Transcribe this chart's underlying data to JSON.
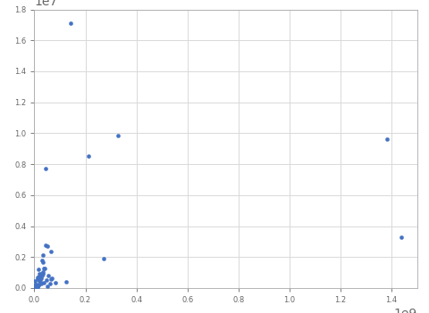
{
  "title": "",
  "xlabel": "",
  "ylabel": "",
  "marker_color": "#4472c4",
  "marker_size": 3,
  "marker_style": "o",
  "background_color": "#ffffff",
  "grid_color": "#d9d9d9",
  "x_data": [
    1381000000,
    1439000000,
    329000000,
    270000000,
    212000000,
    143000000,
    126000000,
    83000000,
    67000000,
    66000000,
    65000000,
    60000000,
    55000000,
    52000000,
    51000000,
    46000000,
    44000000,
    43000000,
    42000000,
    38000000,
    37000000,
    35000000,
    34000000,
    32000000,
    32000000,
    30000000,
    29000000,
    28000000,
    27000000,
    25000000,
    25000000,
    22000000,
    21000000,
    20000000,
    19000000,
    18000000,
    17000000,
    16000000,
    16000000,
    15000000,
    14000000,
    13000000,
    12000000,
    11000000,
    10000000,
    10000000,
    9000000,
    9000000,
    8000000,
    8000000,
    7000000,
    7000000,
    6000000,
    6000000,
    5000000,
    5000000,
    4000000,
    4000000,
    3000000,
    3000000,
    2000000,
    2000000,
    1000000,
    1000000,
    500000,
    500000,
    300000,
    100000,
    50000,
    20000
  ],
  "y_data": [
    9596960,
    3287263,
    9833517,
    1904569,
    8515767,
    17098242,
    377915,
    357114,
    643801,
    551500,
    2381741,
    301340,
    780580,
    2724900,
    99720,
    505370,
    7692024,
    2780400,
    1285216,
    312685,
    1246700,
    916445,
    1648195,
    2149690,
    1040000,
    1759540,
    803940,
    910000,
    329847,
    639321,
    274000,
    580000,
    448000,
    756626,
    756950,
    923768,
    238517,
    603550,
    143100,
    1220000,
    112622,
    582650,
    696000,
    30528,
    41285,
    56785,
    147181,
    17364,
    83871,
    65610,
    110861,
    199951,
    21041,
    27750,
    238533,
    93030,
    28748,
    70273,
    143998,
    475440,
    120000,
    5130,
    2040,
    300,
    160,
    120,
    400,
    26338,
    702,
    21
  ],
  "xlim": [
    0,
    1500000000
  ],
  "ylim": [
    0,
    18000000
  ],
  "figsize": [
    4.81,
    3.51
  ],
  "dpi": 100
}
